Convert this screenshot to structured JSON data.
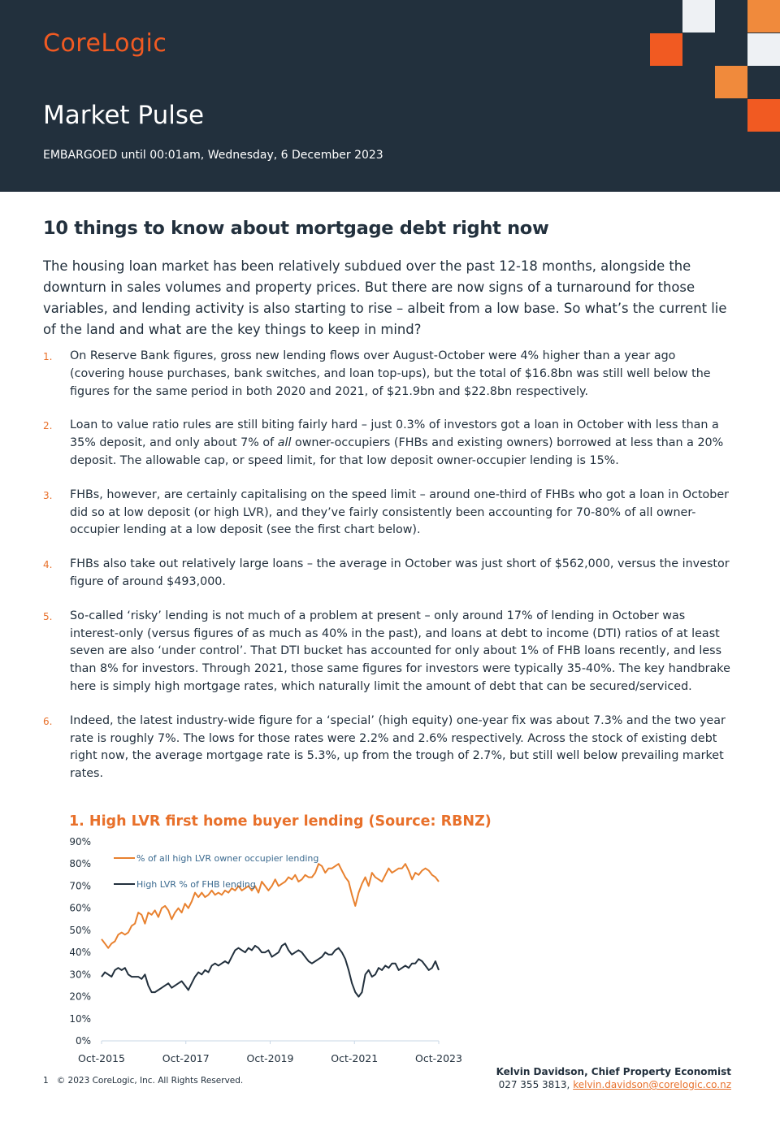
{
  "header": {
    "logo": "CoreLogic",
    "title": "Market Pulse",
    "embargo": "EMBARGOED until 00:01am, Wednesday, 6 December 2023",
    "colors": {
      "navy": "#22303d",
      "orange": "#f15a22",
      "light_orange": "#f08a3c",
      "pale": "#eef1f4"
    }
  },
  "article": {
    "title": "10 things to know about mortgage debt right now",
    "intro": "The housing loan market has been relatively subdued over the past 12-18 months, alongside the downturn in sales volumes and property prices. But there are now signs of a turnaround for those variables, and lending activity is also starting to rise – albeit from a low base. So what’s the current lie of the land and what are the key things to keep in mind?",
    "items": [
      {
        "num": "1.",
        "text": "On Reserve Bank figures, gross new lending flows over August-October were 4% higher than a year ago (covering house purchases, bank switches, and loan top-ups), but the total of $16.8bn was still well below the figures for the same period in both 2020 and 2021, of $21.9bn and $22.8bn respectively."
      },
      {
        "num": "2.",
        "text_before": "Loan to value ratio rules are still biting fairly hard – just 0.3% of investors got a loan in October with less than a 35% deposit, and only about 7% of ",
        "text_em": "all",
        "text_after": " owner-occupiers (FHBs and existing owners) borrowed at less than a 20% deposit. The allowable cap, or speed limit, for that low deposit owner-occupier lending is 15%."
      },
      {
        "num": "3.",
        "text": "FHBs, however, are certainly capitalising on the speed limit – around one-third of FHBs who got a loan in October did so at low deposit (or high LVR), and they’ve fairly consistently been accounting for 70-80% of all owner-occupier lending at a low deposit (see the first chart below)."
      },
      {
        "num": "4.",
        "text": "FHBs also take out relatively large loans – the average in October was just short of $562,000, versus the investor figure of around $493,000."
      },
      {
        "num": "5.",
        "text": "So-called ‘risky’ lending is not much of a problem at present – only around 17% of lending in October was interest-only (versus figures of as much as 40% in the past), and loans at debt to income (DTI) ratios of at least seven are also ‘under control’. That DTI bucket has accounted for only about 1% of FHB loans recently, and less than 8% for investors. Through 2021, those same figures for investors were typically 35-40%. The key handbrake here is simply high mortgage rates, which naturally limit the amount of debt that can be secured/serviced."
      },
      {
        "num": "6.",
        "text": "Indeed, the latest industry-wide figure for a ‘special’ (high equity) one-year fix was about 7.3% and the two year rate is roughly 7%. The lows for those rates were 2.2% and 2.6% respectively. Across the stock of existing debt right now, the average mortgage rate is 5.3%, up from the trough of 2.7%, but still well below prevailing market rates."
      }
    ]
  },
  "chart_title": "1. High LVR first home buyer lending (Source: RBNZ)",
  "chart_data": {
    "type": "line",
    "title": "1. High LVR first home buyer lending (Source: RBNZ)",
    "xlabel": "",
    "ylabel": "",
    "x_ticks": [
      "Oct-2015",
      "Oct-2017",
      "Oct-2019",
      "Oct-2021",
      "Oct-2023"
    ],
    "y_ticks": [
      "0%",
      "10%",
      "20%",
      "30%",
      "40%",
      "50%",
      "60%",
      "70%",
      "80%",
      "90%"
    ],
    "ylim": [
      0,
      90
    ],
    "x_range": [
      "Oct-2015",
      "Oct-2023"
    ],
    "grid": false,
    "legend_position": "top-left",
    "series": [
      {
        "name": "% of all high LVR owner occupier lending",
        "color": "#e8812f",
        "values": [
          46,
          44,
          42,
          44,
          45,
          48,
          49,
          48,
          49,
          52,
          53,
          58,
          57,
          53,
          58,
          57,
          59,
          56,
          60,
          61,
          59,
          55,
          58,
          60,
          58,
          62,
          60,
          63,
          67,
          65,
          67,
          65,
          66,
          68,
          66,
          67,
          66,
          68,
          67,
          69,
          68,
          70,
          68,
          69,
          70,
          68,
          70,
          67,
          72,
          70,
          68,
          70,
          73,
          70,
          71,
          72,
          74,
          73,
          75,
          72,
          73,
          75,
          74,
          74,
          76,
          80,
          79,
          76,
          78,
          78,
          79,
          80,
          77,
          74,
          72,
          66,
          61,
          67,
          71,
          74,
          70,
          76,
          74,
          73,
          72,
          75,
          78,
          76,
          77,
          78,
          78,
          80,
          77,
          73,
          76,
          75,
          77,
          78,
          77,
          75,
          74,
          72
        ]
      },
      {
        "name": "High LVR % of FHB lending",
        "color": "#22303d",
        "values": [
          29,
          31,
          30,
          29,
          32,
          33,
          32,
          33,
          30,
          29,
          29,
          29,
          28,
          30,
          25,
          22,
          22,
          23,
          24,
          25,
          26,
          24,
          25,
          26,
          27,
          25,
          23,
          26,
          29,
          31,
          30,
          32,
          31,
          34,
          35,
          34,
          35,
          36,
          35,
          38,
          41,
          42,
          41,
          40,
          42,
          41,
          43,
          42,
          40,
          40,
          41,
          38,
          39,
          40,
          43,
          44,
          41,
          39,
          40,
          41,
          40,
          38,
          36,
          35,
          36,
          37,
          38,
          40,
          39,
          39,
          41,
          42,
          40,
          37,
          32,
          26,
          22,
          20,
          22,
          30,
          32,
          29,
          30,
          33,
          32,
          34,
          33,
          35,
          35,
          32,
          33,
          34,
          33,
          35,
          35,
          37,
          36,
          34,
          32,
          33,
          36,
          32
        ]
      }
    ]
  },
  "footer": {
    "page": "1",
    "copyright": "© 2023 CoreLogic, Inc. All Rights Reserved.",
    "author_name": "Kelvin Davidson, Chief Property Economist",
    "phone": "027 355 3813,",
    "email": "kelvin.davidson@corelogic.co.nz"
  }
}
